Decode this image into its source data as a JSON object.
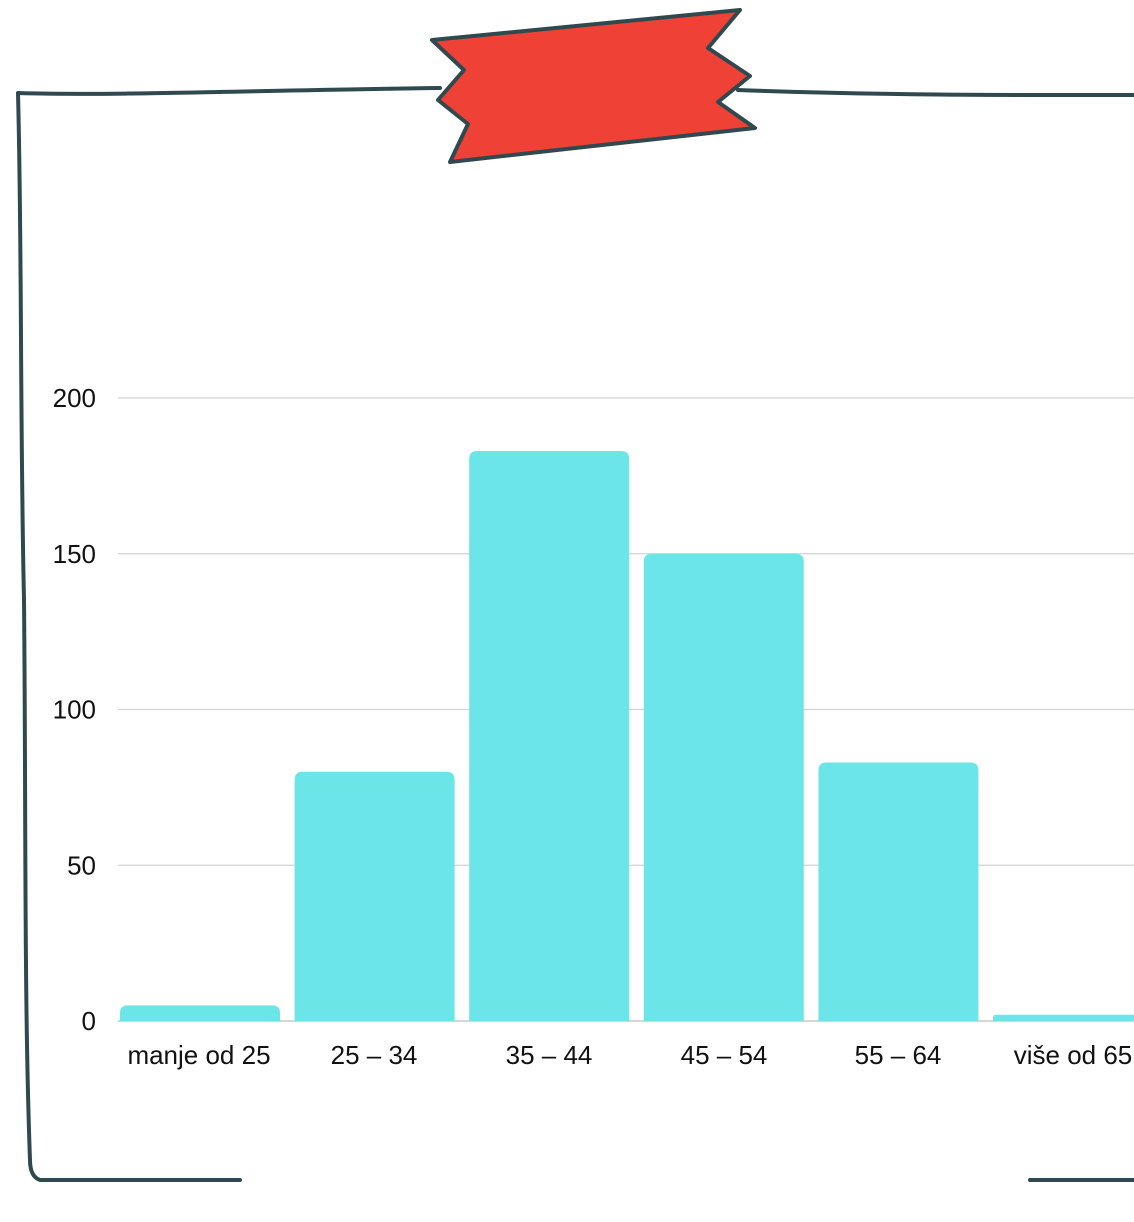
{
  "colors": {
    "bar": "#6ce5e8",
    "frame": "#2f4a4f",
    "tape": "#ef4136",
    "grid": "#d3d3d3",
    "axis_text": "#111111"
  },
  "chart_data": {
    "type": "bar",
    "categories": [
      "manje od 25",
      "25 – 34",
      "35 – 44",
      "45 – 54",
      "55 – 64",
      "više od 65"
    ],
    "values": [
      5,
      80,
      183,
      150,
      83,
      2
    ],
    "ylim": [
      0,
      200
    ],
    "yticks": [
      0,
      50,
      100,
      150,
      200
    ],
    "ytick_labels": [
      "0",
      "50",
      "100",
      "150",
      "200"
    ],
    "grid": true,
    "title": "",
    "xlabel": "",
    "ylabel": ""
  },
  "decor": {
    "frame_icon": "hand-drawn-frame",
    "tape_icon": "red-tape-banner"
  }
}
